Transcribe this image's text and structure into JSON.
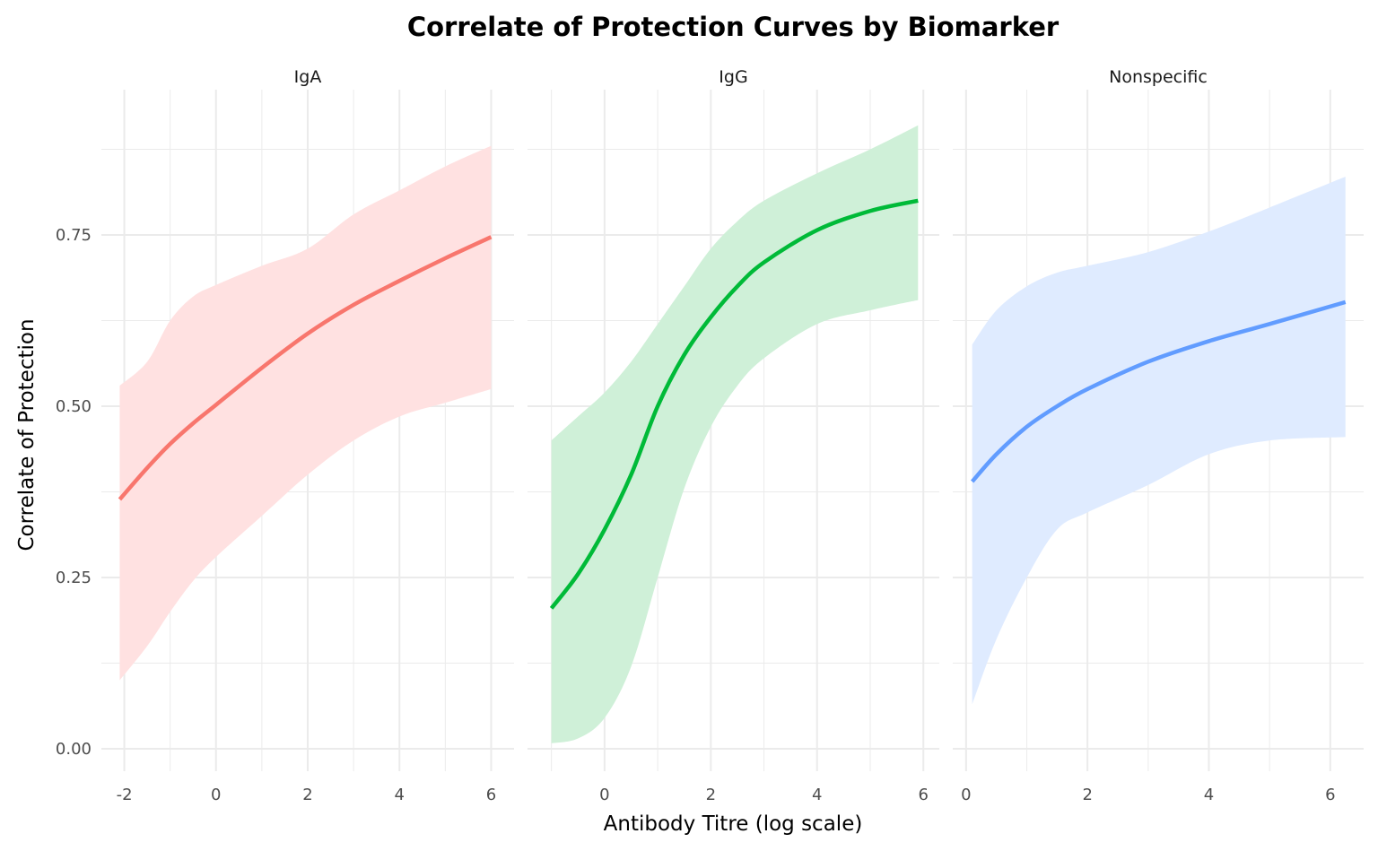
{
  "chart_data": {
    "type": "line",
    "title": "Correlate of Protection Curves by Biomarker",
    "xlabel": "Antibody Titre (log scale)",
    "ylabel": "Correlate of Protection",
    "ylim": [
      -0.03,
      0.95
    ],
    "yticks": [
      0,
      0.25,
      0.5,
      0.75
    ],
    "ytick_labels": [
      "0.00",
      "0.25",
      "0.50",
      "0.75"
    ],
    "grid": true,
    "legend": "none",
    "panels": [
      {
        "name": "IgA",
        "color": "#F8766D",
        "fill": "#FFE1E1",
        "xlim": [
          -2.5,
          6.5
        ],
        "xticks": [
          -2,
          0,
          2,
          4,
          6
        ],
        "xtick_labels": [
          "-2",
          "0",
          "2",
          "4",
          "6"
        ],
        "x": [
          -2.1,
          -1.5,
          -1,
          -0.5,
          0,
          1,
          2,
          3,
          4,
          5,
          6
        ],
        "y": [
          0.364,
          0.41,
          0.445,
          0.475,
          0.502,
          0.556,
          0.606,
          0.648,
          0.683,
          0.716,
          0.747
        ],
        "upper": [
          0.53,
          0.565,
          0.625,
          0.66,
          0.677,
          0.705,
          0.73,
          0.78,
          0.815,
          0.85,
          0.88
        ],
        "lower": [
          0.1,
          0.15,
          0.2,
          0.245,
          0.28,
          0.34,
          0.4,
          0.45,
          0.485,
          0.505,
          0.525
        ]
      },
      {
        "name": "IgG",
        "color": "#00BA38",
        "fill": "#CFF0D8",
        "xlim": [
          -1.45,
          6.3
        ],
        "xticks": [
          0,
          2,
          4,
          6
        ],
        "xtick_labels": [
          "0",
          "2",
          "4",
          "6"
        ],
        "x": [
          -1,
          -0.5,
          0,
          0.5,
          1,
          1.5,
          2,
          2.5,
          3,
          4,
          5,
          5.9
        ],
        "y": [
          0.205,
          0.255,
          0.32,
          0.4,
          0.5,
          0.575,
          0.63,
          0.675,
          0.71,
          0.757,
          0.785,
          0.8
        ],
        "upper": [
          0.45,
          0.485,
          0.52,
          0.565,
          0.62,
          0.675,
          0.73,
          0.77,
          0.8,
          0.84,
          0.875,
          0.91
        ],
        "lower": [
          0.008,
          0.015,
          0.045,
          0.12,
          0.25,
          0.38,
          0.47,
          0.53,
          0.57,
          0.62,
          0.64,
          0.655
        ]
      },
      {
        "name": "Nonspecific",
        "color": "#619CFF",
        "fill": "#DFEBFF",
        "xlim": [
          -0.22,
          6.55
        ],
        "xticks": [
          0,
          2,
          4,
          6
        ],
        "xtick_labels": [
          "0",
          "2",
          "4",
          "6"
        ],
        "x": [
          0.1,
          0.5,
          1,
          1.5,
          2,
          3,
          4,
          5,
          6.25
        ],
        "y": [
          0.39,
          0.43,
          0.47,
          0.5,
          0.525,
          0.565,
          0.595,
          0.62,
          0.652
        ],
        "upper": [
          0.59,
          0.64,
          0.675,
          0.695,
          0.705,
          0.725,
          0.755,
          0.79,
          0.835
        ],
        "lower": [
          0.065,
          0.16,
          0.25,
          0.32,
          0.345,
          0.385,
          0.43,
          0.45,
          0.455
        ]
      }
    ]
  }
}
